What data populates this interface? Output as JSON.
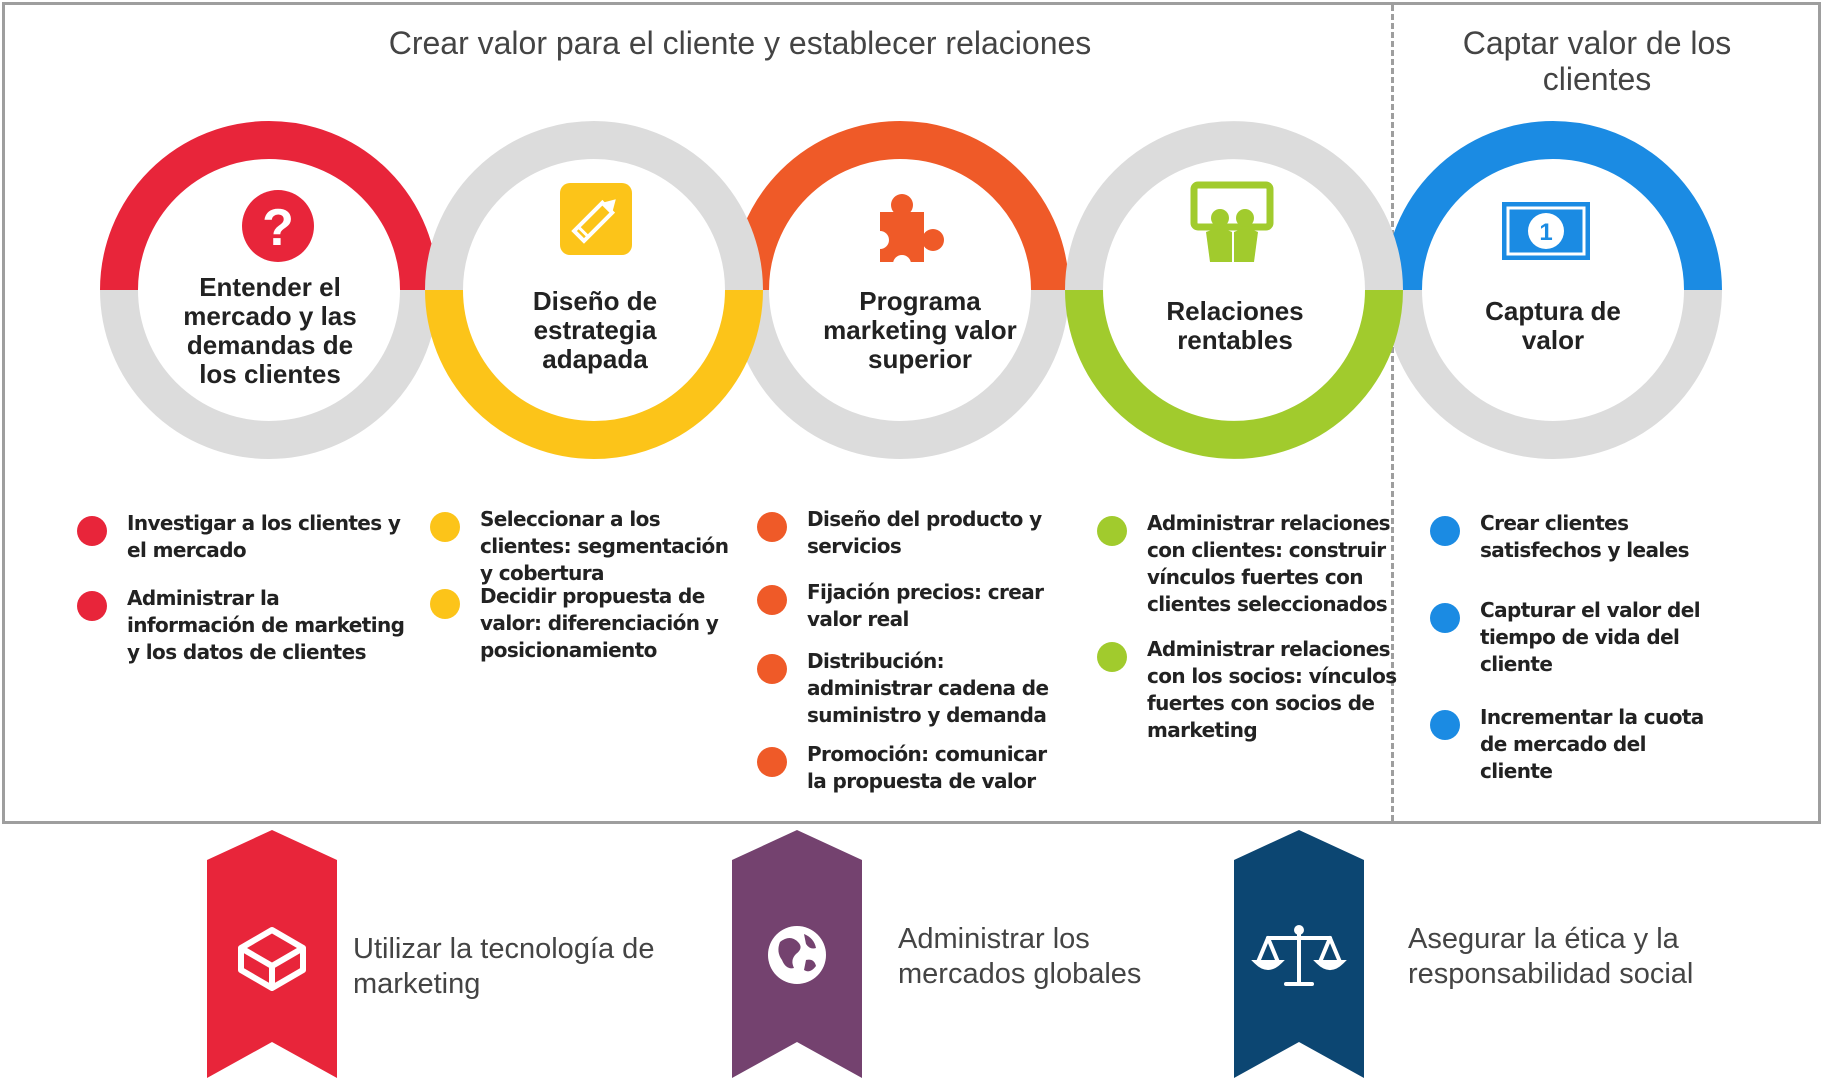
{
  "titles": {
    "left": "Crear valor para el cliente y establecer relaciones",
    "right": "Captar valor de los clientes"
  },
  "colors": {
    "red": "#e8253a",
    "yellow": "#fcc419",
    "orange": "#ef5a28",
    "green": "#a1cb2d",
    "blue": "#1b8be3",
    "gray": "#dcdcdc",
    "purple": "#74426f",
    "navy": "#0c4672"
  },
  "steps": [
    {
      "label": "Entender el mercado y las demandas de los clientes",
      "icon": "question-icon",
      "color": "#e8253a",
      "bullets": [
        "Investigar a los clientes y el mercado",
        "Administrar la información de marketing y los datos de clientes"
      ]
    },
    {
      "label": "Diseño de estrategia adapada",
      "icon": "pencil-icon",
      "color": "#fcc419",
      "bullets": [
        "Seleccionar a los clientes: segmentación y cobertura",
        "Decidir propuesta de valor: diferenciación y posicionamiento"
      ]
    },
    {
      "label": "Programa marketing valor superior",
      "icon": "puzzle-icon",
      "color": "#ef5a28",
      "bullets": [
        "Diseño del producto y servicios",
        "Fijación precios: crear valor real",
        "Distribución: administrar cadena de suministro y demanda",
        "Promoción: comunicar la propuesta de valor"
      ]
    },
    {
      "label": "Relaciones rentables",
      "icon": "people-board-icon",
      "color": "#a1cb2d",
      "bullets": [
        "Administrar relaciones con clientes: construir vínculos fuertes con clientes seleccionados",
        "Administrar relaciones con los socios: vínculos fuertes con socios de marketing"
      ]
    },
    {
      "label": "Captura de valor",
      "icon": "banknote-icon",
      "color": "#1b8be3",
      "bullets": [
        "Crear clientes satisfechos y leales",
        "Capturar el valor del tiempo de vida del cliente",
        "Incrementar la cuota de mercado del cliente"
      ]
    }
  ],
  "ribbons": [
    {
      "text": "Utilizar la tecnología de marketing",
      "icon": "cube-icon",
      "color": "#e8253a"
    },
    {
      "text": "Administrar los mercados globales",
      "icon": "globe-icon",
      "color": "#74426f"
    },
    {
      "text": "Asegurar la ética y la responsabilidad social",
      "icon": "scales-icon",
      "color": "#0c4672"
    }
  ]
}
